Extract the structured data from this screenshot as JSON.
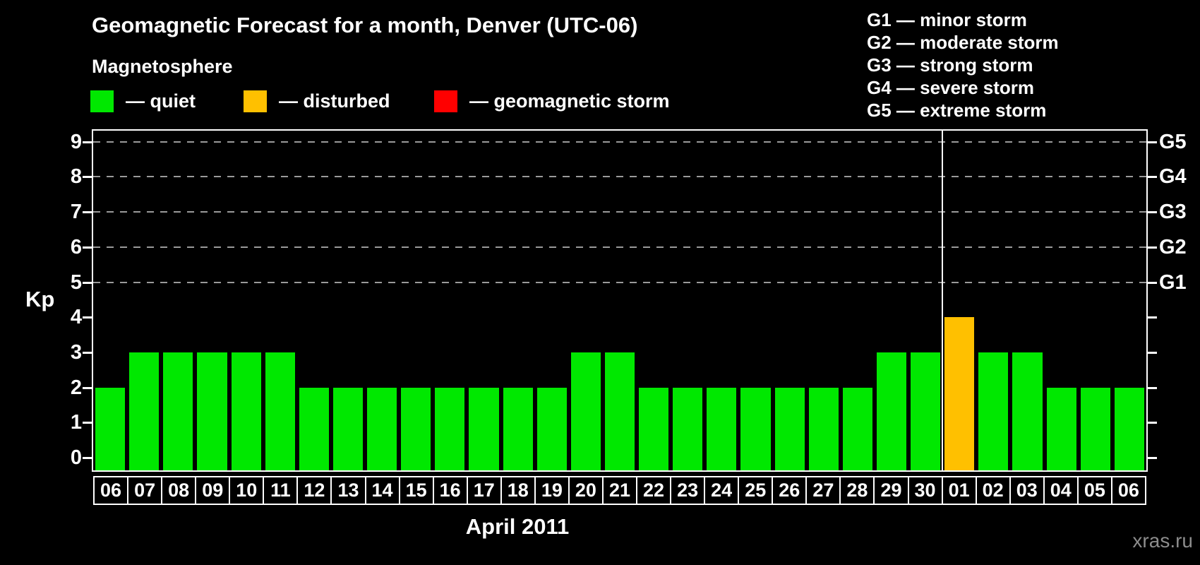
{
  "header": {
    "title": "Geomagnetic Forecast for a month, Denver (UTC-06)",
    "subtitle": "Magnetosphere",
    "legend": [
      {
        "status": "quiet",
        "label": "— quiet",
        "color": "#00e800"
      },
      {
        "status": "disturbed",
        "label": "— disturbed",
        "color": "#ffc000"
      },
      {
        "status": "storm",
        "label": "— geomagnetic storm",
        "color": "#ff0000"
      }
    ],
    "storm_scale_legend": [
      "G1 — minor storm",
      "G2 — moderate storm",
      "G3 — strong storm",
      "G4 — severe storm",
      "G5 — extreme storm"
    ]
  },
  "chart_data": {
    "type": "bar",
    "title": "Geomagnetic Forecast for a month, Denver (UTC-06)",
    "ylabel": "Kp",
    "xlabel": "April 2011",
    "ylim": [
      0,
      9
    ],
    "yticks": [
      0,
      1,
      2,
      3,
      4,
      5,
      6,
      7,
      8,
      9
    ],
    "grid_levels": [
      5,
      6,
      7,
      8,
      9
    ],
    "grid_style": "dashed",
    "legend_position": "top-left",
    "right_axis": [
      {
        "kp": 5,
        "label": "G1"
      },
      {
        "kp": 6,
        "label": "G2"
      },
      {
        "kp": 7,
        "label": "G3"
      },
      {
        "kp": 8,
        "label": "G4"
      },
      {
        "kp": 9,
        "label": "G5"
      }
    ],
    "status_colors": {
      "quiet": "#00e800",
      "disturbed": "#ffc000",
      "storm": "#ff0000"
    },
    "month_divider_after_index": 24,
    "bars": [
      {
        "day": "06",
        "kp": 2,
        "status": "quiet"
      },
      {
        "day": "07",
        "kp": 3,
        "status": "quiet"
      },
      {
        "day": "08",
        "kp": 3,
        "status": "quiet"
      },
      {
        "day": "09",
        "kp": 3,
        "status": "quiet"
      },
      {
        "day": "10",
        "kp": 3,
        "status": "quiet"
      },
      {
        "day": "11",
        "kp": 3,
        "status": "quiet"
      },
      {
        "day": "12",
        "kp": 2,
        "status": "quiet"
      },
      {
        "day": "13",
        "kp": 2,
        "status": "quiet"
      },
      {
        "day": "14",
        "kp": 2,
        "status": "quiet"
      },
      {
        "day": "15",
        "kp": 2,
        "status": "quiet"
      },
      {
        "day": "16",
        "kp": 2,
        "status": "quiet"
      },
      {
        "day": "17",
        "kp": 2,
        "status": "quiet"
      },
      {
        "day": "18",
        "kp": 2,
        "status": "quiet"
      },
      {
        "day": "19",
        "kp": 2,
        "status": "quiet"
      },
      {
        "day": "20",
        "kp": 3,
        "status": "quiet"
      },
      {
        "day": "21",
        "kp": 3,
        "status": "quiet"
      },
      {
        "day": "22",
        "kp": 2,
        "status": "quiet"
      },
      {
        "day": "23",
        "kp": 2,
        "status": "quiet"
      },
      {
        "day": "24",
        "kp": 2,
        "status": "quiet"
      },
      {
        "day": "25",
        "kp": 2,
        "status": "quiet"
      },
      {
        "day": "26",
        "kp": 2,
        "status": "quiet"
      },
      {
        "day": "27",
        "kp": 2,
        "status": "quiet"
      },
      {
        "day": "28",
        "kp": 2,
        "status": "quiet"
      },
      {
        "day": "29",
        "kp": 3,
        "status": "quiet"
      },
      {
        "day": "30",
        "kp": 3,
        "status": "quiet"
      },
      {
        "day": "01",
        "kp": 4,
        "status": "disturbed"
      },
      {
        "day": "02",
        "kp": 3,
        "status": "quiet"
      },
      {
        "day": "03",
        "kp": 3,
        "status": "quiet"
      },
      {
        "day": "04",
        "kp": 2,
        "status": "quiet"
      },
      {
        "day": "05",
        "kp": 2,
        "status": "quiet"
      },
      {
        "day": "06",
        "kp": 2,
        "status": "quiet"
      }
    ]
  },
  "footer": {
    "watermark": "xras.ru"
  }
}
